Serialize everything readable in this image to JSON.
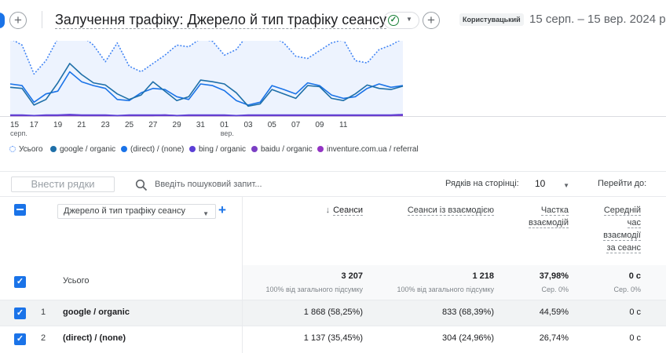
{
  "header": {
    "report_title": "Залучення трафіку: Джерело й тип трафіку сеансу",
    "add_symbol": "+",
    "comparison_badge": "Користувацький",
    "date_range": "15 серп. – 15 вер. 2024 р."
  },
  "chart_data": {
    "type": "line",
    "x_tick_labels": [
      "15",
      "17",
      "19",
      "21",
      "23",
      "25",
      "27",
      "29",
      "31",
      "01",
      "03",
      "05",
      "07",
      "09",
      "11"
    ],
    "x_sub_labels": {
      "0": "серп.",
      "9": "вер."
    },
    "series": [
      {
        "name": "Усього",
        "style": "dotted",
        "color": "#4285f4",
        "values": [
          140,
          128,
          76,
          100,
          140,
          138,
          145,
          128,
          98,
          132,
          90,
          80,
          95,
          110,
          128,
          125,
          140,
          135,
          110,
          120,
          148,
          150,
          145,
          132,
          108,
          104,
          118,
          132,
          138,
          100,
          96,
          120,
          128,
          140
        ]
      },
      {
        "name": "google / organic",
        "style": "solid",
        "color": "#1e6fa8",
        "values": [
          52,
          50,
          20,
          30,
          60,
          95,
          75,
          60,
          56,
          40,
          30,
          38,
          62,
          45,
          28,
          35,
          65,
          62,
          58,
          42,
          18,
          22,
          48,
          40,
          32,
          55,
          53,
          32,
          28,
          40,
          56,
          50,
          48,
          54
        ]
      },
      {
        "name": "(direct) / (none)",
        "style": "solid",
        "color": "#1a73e8",
        "values": [
          58,
          55,
          25,
          40,
          45,
          80,
          62,
          55,
          50,
          30,
          28,
          42,
          50,
          48,
          35,
          30,
          58,
          55,
          46,
          28,
          20,
          25,
          55,
          48,
          40,
          60,
          55,
          38,
          32,
          35,
          50,
          58,
          52,
          55
        ]
      },
      {
        "name": "bing / organic",
        "style": "solid",
        "color": "#5b3fd6",
        "values": [
          2,
          2,
          1,
          2,
          2,
          3,
          2,
          2,
          2,
          1,
          2,
          2,
          2,
          2,
          1,
          2,
          2,
          2,
          2,
          1,
          2,
          2,
          2,
          2,
          2,
          2,
          2,
          2,
          2,
          2,
          2,
          2,
          2,
          3
        ]
      },
      {
        "name": "baidu / organic",
        "style": "solid",
        "color": "#7b3fc4",
        "values": [
          1,
          1,
          1,
          1,
          1,
          1,
          1,
          1,
          1,
          1,
          1,
          1,
          1,
          1,
          1,
          1,
          1,
          1,
          1,
          1,
          1,
          1,
          1,
          1,
          1,
          1,
          1,
          1,
          1,
          1,
          1,
          1,
          1,
          1
        ]
      },
      {
        "name": "inventure.com.ua / referral",
        "style": "solid",
        "color": "#9334c4",
        "values": [
          1,
          1,
          1,
          1,
          1,
          2,
          1,
          1,
          1,
          1,
          1,
          1,
          1,
          2,
          1,
          1,
          1,
          1,
          1,
          1,
          1,
          1,
          1,
          1,
          1,
          1,
          1,
          1,
          1,
          1,
          1,
          1,
          1,
          2
        ]
      }
    ],
    "ylim": [
      0,
      150
    ]
  },
  "toolbar": {
    "add_rows_label": "Внести рядки",
    "search_placeholder": "Введіть пошуковий запит...",
    "rows_per_page_label": "Рядків на сторінці:",
    "rows_per_page_value": "10",
    "goto_label": "Перейти до:"
  },
  "table": {
    "dimension_selector": "Джерело й тип трафіку сеансу",
    "columns": [
      {
        "lines": [
          "Сеанси"
        ],
        "sorted": true
      },
      {
        "lines": [
          "Сеанси із взаємодією"
        ]
      },
      {
        "lines": [
          "Частка",
          "взаємодій"
        ]
      },
      {
        "lines": [
          "Середній",
          "час",
          "взаємодії",
          "за сеанс"
        ]
      }
    ],
    "totals": {
      "label": "Усього",
      "values": [
        "3 207",
        "1 218",
        "37,98%",
        "0 с"
      ],
      "subs": [
        "100% від загального підсумку",
        "100% від загального підсумку",
        "Сер. 0%",
        "Сер. 0%"
      ]
    },
    "rows": [
      {
        "num": "1",
        "dimension": "google / organic",
        "values": [
          "1 868 (58,25%)",
          "833 (68,39%)",
          "44,59%",
          "0 с"
        ]
      },
      {
        "num": "2",
        "dimension": "(direct) / (none)",
        "values": [
          "1 137 (35,45%)",
          "304 (24,96%)",
          "26,74%",
          "0 с"
        ]
      }
    ]
  }
}
